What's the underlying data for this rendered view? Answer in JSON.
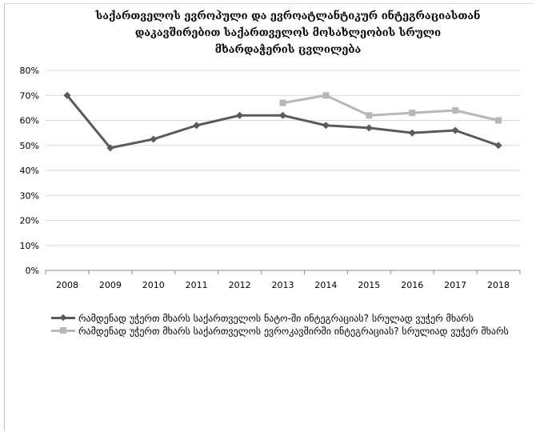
{
  "chart_data": {
    "type": "line",
    "title_lines": [
      "საქართველოს ევროპული და ევროატლანტიკურ ინტეგრაციასთან",
      "დაკავშირებით საქართველოს მოსახლეობის სრული",
      "მხარდაჭერის ცვლილება"
    ],
    "categories": [
      "2008",
      "2009",
      "2010",
      "2011",
      "2012",
      "2013",
      "2014",
      "2015",
      "2016",
      "2017",
      "2018"
    ],
    "ylim": [
      0,
      80
    ],
    "yticks": [
      0,
      10,
      20,
      30,
      40,
      50,
      60,
      70,
      80
    ],
    "ytick_labels": [
      "0%",
      "10%",
      "20%",
      "30%",
      "40%",
      "50%",
      "60%",
      "70%",
      "80%"
    ],
    "grid": true,
    "legend_position": "bottom",
    "series": [
      {
        "name": "რამდენად უჭერთ მხარს საქართველოს ნატო-ში ინტეგრაციას? სრულად ვუჭერ მხარს",
        "color": "#5a5a5a",
        "marker": "diamond",
        "values": [
          70,
          49,
          52.5,
          58,
          62,
          62,
          58,
          57,
          55,
          56,
          50
        ]
      },
      {
        "name": "რამდენად უჭერთ მხარს საქართველოს ევროკავშირში ინტეგრაციას? სრულიად ვუჭერ მხარს",
        "color": "#b7b7b7",
        "marker": "square",
        "values": [
          null,
          null,
          null,
          null,
          null,
          67,
          70,
          62,
          63,
          64,
          60
        ]
      }
    ]
  }
}
